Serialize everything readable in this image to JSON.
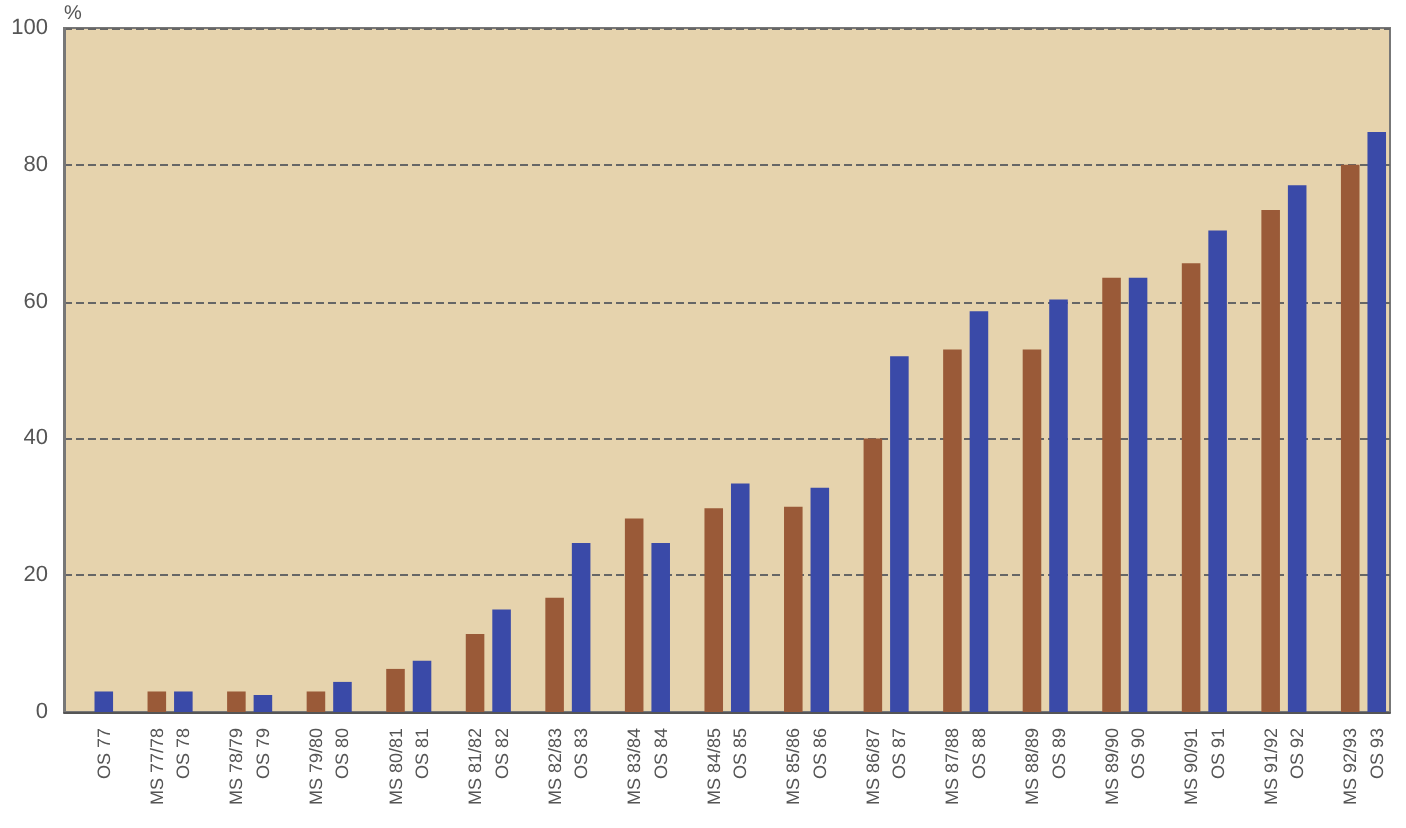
{
  "chart_data": {
    "type": "bar",
    "ylabel": "%",
    "categories": [
      null,
      "OS 77",
      null,
      "MS 77/78",
      "OS 78",
      null,
      "MS 78/79",
      "OS 79",
      null,
      "MS 79/80",
      "OS 80",
      null,
      "MS 80/81",
      "OS 81",
      null,
      "MS 81/82",
      "OS 82",
      null,
      "MS 82/83",
      "OS 83",
      null,
      "MS 83/84",
      "OS 84",
      null,
      "MS 84/85",
      "OS 85",
      null,
      "MS 85/86",
      "OS 86",
      null,
      "MS 86/87",
      "OS 87",
      null,
      "MS 87/88",
      "OS 88",
      null,
      "MS 88/89",
      "OS 89",
      null,
      "MS 89/90",
      "OS 90",
      null,
      "MS 90/91",
      "OS 91",
      null,
      "MS 91/92",
      "OS 92",
      null,
      "MS 92/93",
      "OS 93"
    ],
    "series": [
      {
        "color": "#9a5a38",
        "values": [
          null,
          null,
          null,
          3,
          null,
          null,
          3,
          null,
          null,
          3,
          null,
          null,
          6.3,
          null,
          null,
          11.4,
          null,
          null,
          16.7,
          null,
          null,
          28.3,
          null,
          null,
          29.8,
          null,
          null,
          30,
          null,
          null,
          40,
          null,
          null,
          53,
          null,
          null,
          53,
          null,
          null,
          63.5,
          null,
          null,
          65.6,
          null,
          null,
          73.4,
          null,
          null,
          80,
          null
        ]
      },
      {
        "color": "#3a4aa8",
        "values": [
          null,
          3,
          null,
          null,
          3,
          null,
          null,
          2.5,
          null,
          null,
          4.4,
          null,
          null,
          7.5,
          null,
          null,
          15,
          null,
          null,
          24.7,
          null,
          null,
          24.7,
          null,
          null,
          33.4,
          null,
          null,
          32.8,
          null,
          null,
          52,
          null,
          null,
          58.6,
          null,
          null,
          60.3,
          null,
          null,
          63.5,
          null,
          null,
          70.4,
          null,
          null,
          77,
          null,
          null,
          84.8
        ]
      }
    ],
    "ylim": [
      0,
      100
    ],
    "yticks": [
      0,
      20,
      40,
      60,
      80,
      100
    ],
    "grid": "y"
  }
}
